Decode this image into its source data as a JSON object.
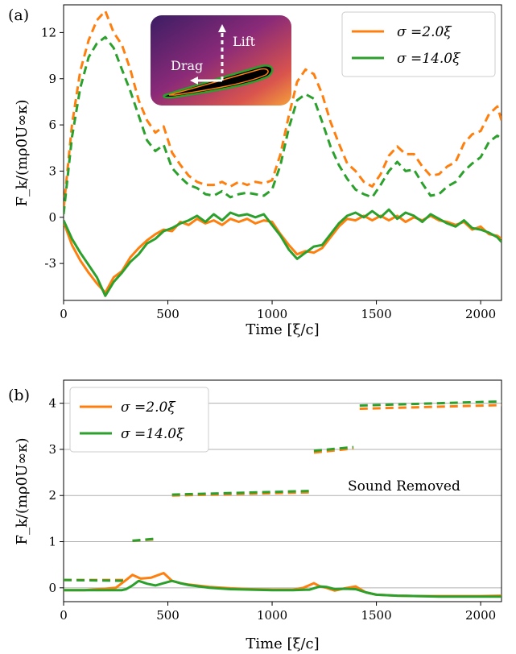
{
  "figure": {
    "panel_a_label": "(a)",
    "panel_b_label": "(b)"
  },
  "colors": {
    "orange": "#ff7f0e",
    "green": "#2ca02c",
    "grid": "#b0b0b0"
  },
  "chart_data": [
    {
      "type": "line",
      "panel": "(a)",
      "xlabel": "Time [ξ/c]",
      "ylabel": "F_k/(mρ0U∞κ)",
      "xlim": [
        0,
        2100
      ],
      "ylim": [
        -5.4,
        13.8
      ],
      "xticks": [
        0,
        500,
        1000,
        1500,
        2000
      ],
      "yticks": [
        12,
        9,
        6,
        3,
        0,
        -3
      ],
      "ytick_labels": [
        "12",
        "9",
        "6",
        "3",
        "0",
        "-3"
      ],
      "grid": false,
      "legend_position": "top-right",
      "inset": {
        "labels": {
          "drag": "Drag",
          "lift": "Lift"
        }
      },
      "series": [
        {
          "name": "σ =2.0ξ",
          "color": "#ff7f0e",
          "style": "dashed",
          "quantity": "Lift",
          "x": [
            0,
            40,
            80,
            120,
            160,
            200,
            240,
            280,
            320,
            360,
            400,
            440,
            480,
            520,
            560,
            600,
            640,
            680,
            720,
            760,
            800,
            840,
            880,
            920,
            960,
            1000,
            1040,
            1080,
            1120,
            1160,
            1200,
            1240,
            1280,
            1320,
            1360,
            1400,
            1440,
            1480,
            1520,
            1560,
            1600,
            1640,
            1680,
            1720,
            1760,
            1800,
            1840,
            1880,
            1920,
            1960,
            2000,
            2040,
            2080,
            2100
          ],
          "y": [
            0.5,
            6.0,
            9.5,
            11.5,
            12.8,
            13.4,
            12.0,
            11.2,
            9.6,
            7.6,
            6.3,
            5.5,
            5.9,
            4.2,
            3.4,
            2.7,
            2.3,
            2.1,
            2.1,
            2.3,
            2.0,
            2.3,
            2.1,
            2.3,
            2.2,
            2.4,
            4.1,
            6.6,
            8.8,
            9.6,
            9.3,
            8.0,
            6.2,
            4.8,
            3.5,
            3.0,
            2.3,
            2.0,
            2.8,
            4.0,
            4.6,
            4.1,
            4.1,
            3.3,
            2.7,
            2.8,
            3.3,
            3.6,
            4.8,
            5.4,
            5.6,
            6.7,
            7.2,
            6.3
          ]
        },
        {
          "name": "σ =14.0ξ",
          "color": "#2ca02c",
          "style": "dashed",
          "quantity": "Lift",
          "x": [
            0,
            40,
            80,
            120,
            160,
            200,
            240,
            280,
            320,
            360,
            400,
            440,
            480,
            520,
            560,
            600,
            640,
            680,
            720,
            760,
            800,
            840,
            880,
            920,
            960,
            1000,
            1040,
            1080,
            1120,
            1160,
            1200,
            1240,
            1280,
            1320,
            1360,
            1400,
            1440,
            1480,
            1520,
            1560,
            1600,
            1640,
            1680,
            1720,
            1760,
            1800,
            1840,
            1880,
            1920,
            1960,
            2000,
            2040,
            2080,
            2100
          ],
          "y": [
            0.2,
            5.2,
            8.4,
            10.4,
            11.3,
            11.7,
            11.0,
            9.6,
            8.2,
            6.6,
            5.0,
            4.3,
            4.7,
            3.2,
            2.6,
            2.1,
            1.9,
            1.5,
            1.4,
            1.7,
            1.3,
            1.5,
            1.6,
            1.5,
            1.4,
            1.8,
            3.4,
            5.8,
            7.6,
            8.0,
            7.7,
            6.2,
            4.6,
            3.4,
            2.5,
            1.8,
            1.5,
            1.3,
            2.1,
            3.0,
            3.6,
            3.0,
            3.1,
            2.2,
            1.4,
            1.5,
            2.0,
            2.3,
            3.0,
            3.5,
            3.9,
            4.9,
            5.3,
            5.1
          ]
        },
        {
          "name": "σ =2.0ξ",
          "color": "#ff7f0e",
          "style": "solid",
          "quantity": "Drag",
          "x": [
            0,
            40,
            80,
            120,
            160,
            200,
            240,
            280,
            320,
            360,
            400,
            440,
            480,
            520,
            560,
            600,
            640,
            680,
            720,
            760,
            800,
            840,
            880,
            920,
            960,
            1000,
            1040,
            1080,
            1120,
            1160,
            1200,
            1240,
            1280,
            1320,
            1360,
            1400,
            1440,
            1480,
            1520,
            1560,
            1600,
            1640,
            1680,
            1720,
            1760,
            1800,
            1840,
            1880,
            1920,
            1960,
            2000,
            2040,
            2080,
            2100
          ],
          "y": [
            -0.3,
            -1.8,
            -2.8,
            -3.6,
            -4.3,
            -4.9,
            -3.9,
            -3.5,
            -2.6,
            -2.0,
            -1.5,
            -1.1,
            -0.8,
            -0.9,
            -0.3,
            -0.5,
            -0.1,
            -0.4,
            -0.2,
            -0.5,
            -0.1,
            -0.3,
            -0.1,
            -0.4,
            -0.2,
            -0.3,
            -1.1,
            -1.8,
            -2.4,
            -2.2,
            -2.3,
            -2.0,
            -1.3,
            -0.6,
            -0.1,
            -0.2,
            0.1,
            -0.2,
            0.1,
            -0.2,
            0.1,
            -0.3,
            0.0,
            -0.2,
            0.1,
            -0.2,
            -0.3,
            -0.5,
            -0.3,
            -0.8,
            -0.6,
            -1.1,
            -1.2,
            -1.4
          ]
        },
        {
          "name": "σ =14.0ξ",
          "color": "#2ca02c",
          "style": "solid",
          "quantity": "Drag",
          "x": [
            0,
            40,
            80,
            120,
            160,
            200,
            240,
            280,
            320,
            360,
            400,
            440,
            480,
            520,
            560,
            600,
            640,
            680,
            720,
            760,
            800,
            840,
            880,
            920,
            960,
            1000,
            1040,
            1080,
            1120,
            1160,
            1200,
            1240,
            1280,
            1320,
            1360,
            1400,
            1440,
            1480,
            1520,
            1560,
            1600,
            1640,
            1680,
            1720,
            1760,
            1800,
            1840,
            1880,
            1920,
            1960,
            2000,
            2040,
            2080,
            2100
          ],
          "y": [
            -0.2,
            -1.4,
            -2.3,
            -3.1,
            -3.9,
            -5.1,
            -4.2,
            -3.6,
            -2.9,
            -2.4,
            -1.7,
            -1.4,
            -0.9,
            -0.7,
            -0.4,
            -0.2,
            0.1,
            -0.3,
            0.2,
            -0.2,
            0.3,
            0.1,
            0.2,
            0.0,
            0.2,
            -0.5,
            -1.2,
            -2.1,
            -2.7,
            -2.3,
            -1.9,
            -1.8,
            -1.1,
            -0.4,
            0.1,
            0.3,
            0.0,
            0.4,
            0.0,
            0.5,
            -0.1,
            0.3,
            0.1,
            -0.3,
            0.2,
            -0.1,
            -0.4,
            -0.6,
            -0.2,
            -0.7,
            -0.8,
            -1.0,
            -1.3,
            -1.6
          ]
        }
      ]
    },
    {
      "type": "line",
      "panel": "(b)",
      "xlabel": "Time [ξ/c]",
      "ylabel": "F_k/(mρ0U∞κ)",
      "xlim": [
        0,
        2100
      ],
      "ylim": [
        -0.3,
        4.5
      ],
      "xticks": [
        0,
        500,
        1000,
        1500,
        2000
      ],
      "yticks": [
        0,
        1,
        2,
        3,
        4
      ],
      "ytick_labels": [
        "0",
        "1",
        "2",
        "3",
        "4"
      ],
      "grid": true,
      "grid_axis": "y",
      "legend_position": "top-left",
      "annotations": [
        "Sound Removed"
      ],
      "series": [
        {
          "name": "σ =2.0ξ",
          "color": "#ff7f0e",
          "style": "dashed",
          "quantity": "Sound Removed",
          "segments": [
            {
              "x": [
                0,
                300
              ],
              "y": [
                0.17,
                0.17
              ]
            },
            {
              "x": [
                330,
                430
              ],
              "y": [
                1.02,
                1.05
              ]
            },
            {
              "x": [
                520,
                1190
              ],
              "y": [
                2.0,
                2.07
              ]
            },
            {
              "x": [
                1200,
                1390
              ],
              "y": [
                2.93,
                3.02
              ]
            },
            {
              "x": [
                1420,
                2100
              ],
              "y": [
                3.88,
                3.96
              ]
            }
          ]
        },
        {
          "name": "σ =14.0ξ",
          "color": "#2ca02c",
          "style": "dashed",
          "quantity": "Sound Removed",
          "segments": [
            {
              "x": [
                0,
                300
              ],
              "y": [
                0.17,
                0.15
              ]
            },
            {
              "x": [
                330,
                430
              ],
              "y": [
                1.02,
                1.06
              ]
            },
            {
              "x": [
                520,
                1190
              ],
              "y": [
                2.02,
                2.1
              ]
            },
            {
              "x": [
                1200,
                1390
              ],
              "y": [
                2.97,
                3.05
              ]
            },
            {
              "x": [
                1420,
                2100
              ],
              "y": [
                3.95,
                4.04
              ]
            }
          ]
        },
        {
          "name": "σ =2.0ξ",
          "color": "#ff7f0e",
          "style": "solid",
          "quantity": "Drag",
          "x": [
            0,
            100,
            200,
            250,
            300,
            330,
            370,
            420,
            480,
            520,
            560,
            600,
            700,
            800,
            900,
            1000,
            1100,
            1150,
            1200,
            1230,
            1260,
            1300,
            1350,
            1400,
            1450,
            1500,
            1600,
            1700,
            1800,
            1900,
            2000,
            2100
          ],
          "y": [
            -0.05,
            -0.05,
            -0.02,
            0.0,
            0.17,
            0.28,
            0.2,
            0.22,
            0.32,
            0.15,
            0.1,
            0.07,
            0.02,
            -0.01,
            -0.03,
            -0.04,
            -0.04,
            0.0,
            0.1,
            0.03,
            0.0,
            -0.06,
            -0.01,
            0.03,
            -0.1,
            -0.15,
            -0.17,
            -0.18,
            -0.18,
            -0.18,
            -0.18,
            -0.17
          ]
        },
        {
          "name": "σ =14.0ξ",
          "color": "#2ca02c",
          "style": "solid",
          "quantity": "Drag",
          "x": [
            0,
            100,
            200,
            280,
            300,
            330,
            360,
            400,
            440,
            480,
            520,
            560,
            600,
            700,
            800,
            900,
            1000,
            1100,
            1180,
            1230,
            1260,
            1300,
            1350,
            1400,
            1450,
            1500,
            1600,
            1700,
            1800,
            1900,
            2000,
            2100
          ],
          "y": [
            -0.05,
            -0.05,
            -0.05,
            -0.05,
            -0.03,
            0.05,
            0.15,
            0.09,
            0.05,
            0.1,
            0.15,
            0.1,
            0.06,
            0.0,
            -0.03,
            -0.04,
            -0.05,
            -0.05,
            -0.04,
            0.03,
            0.02,
            -0.03,
            -0.02,
            -0.03,
            -0.1,
            -0.15,
            -0.17,
            -0.18,
            -0.19,
            -0.19,
            -0.19,
            -0.19
          ]
        }
      ]
    }
  ]
}
